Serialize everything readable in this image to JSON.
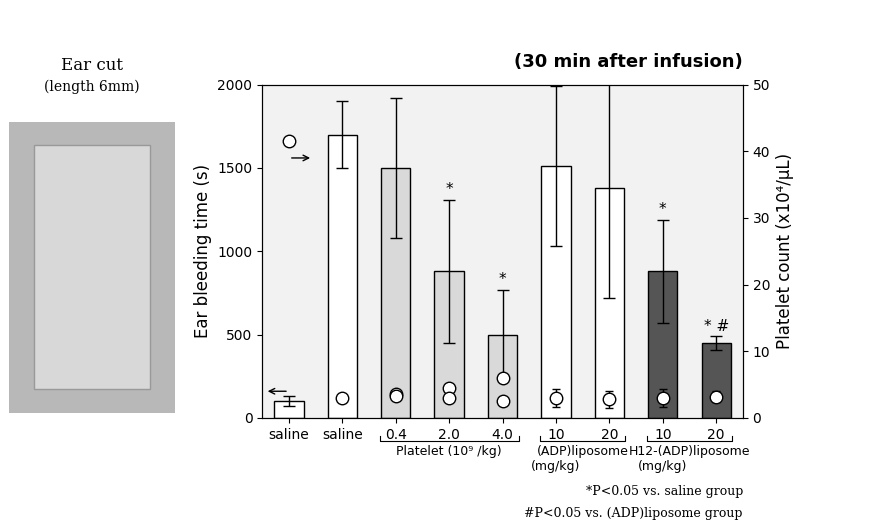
{
  "chart_data": {
    "type": "bar",
    "title": "(30 min after infusion)",
    "image": {
      "title": "Ear cut",
      "subtitle": "(length 6mm)"
    },
    "categories": [
      "saline",
      "saline",
      "0.4",
      "2.0",
      "4.0",
      "10",
      "20",
      "10",
      "20"
    ],
    "groups": [
      {
        "label": "Platelet (10⁹ /kg)",
        "first": 2,
        "last": 4
      },
      {
        "label": "(ADP)liposome",
        "unit": "(mg/kg)",
        "first": 5,
        "last": 6
      },
      {
        "label": "H12-(ADP)liposome",
        "unit": "(mg/kg)",
        "first": 7,
        "last": 8
      }
    ],
    "y_label": "Ear bleeding time (s)",
    "ylim": [
      0,
      2000
    ],
    "yticks": [
      0,
      500,
      1000,
      1500,
      2000
    ],
    "y2_label": "Platelet count (x10⁴/μL)",
    "y2lim": [
      0,
      50
    ],
    "y2ticks": [
      0,
      10,
      20,
      30,
      40,
      50
    ],
    "series": [
      {
        "type": "bar",
        "values": [
          100,
          1700,
          1500,
          880,
          500,
          1510,
          1380,
          880,
          450
        ],
        "errors": [
          30,
          200,
          420,
          430,
          270,
          480,
          660,
          310,
          40
        ],
        "colors": [
          "#ffffff",
          "#ffffff",
          "#d9d9d9",
          "#d9d9d9",
          "#d9d9d9",
          "#ffffff",
          "#ffffff",
          "#555555",
          "#555555"
        ]
      },
      {
        "type": "scatter",
        "axis": "y2",
        "marker": "circle",
        "color": "#ffffff",
        "values": [
          41.5,
          3.0,
          3.6,
          4.5,
          6.0,
          3.0,
          2.8,
          3.0,
          3.2
        ],
        "errors": [
          0,
          0.5,
          0.5,
          0.5,
          0.5,
          1.3,
          1.3,
          1.3,
          0.8
        ]
      },
      {
        "type": "scatter",
        "axis": "y2",
        "marker": "circle",
        "color": "#ffffff",
        "values": [
          null,
          null,
          3.3,
          3.0,
          2.5,
          null,
          null,
          null,
          null
        ],
        "errors": [
          null,
          null,
          0.5,
          0.5,
          0.5,
          null,
          null,
          null,
          null
        ]
      }
    ],
    "significance": [
      null,
      null,
      null,
      "*",
      "*",
      null,
      null,
      "*",
      "* #"
    ],
    "notes": [
      "*P<0.05 vs. saline group",
      "#P<0.05 vs. (ADP)liposome group"
    ]
  }
}
